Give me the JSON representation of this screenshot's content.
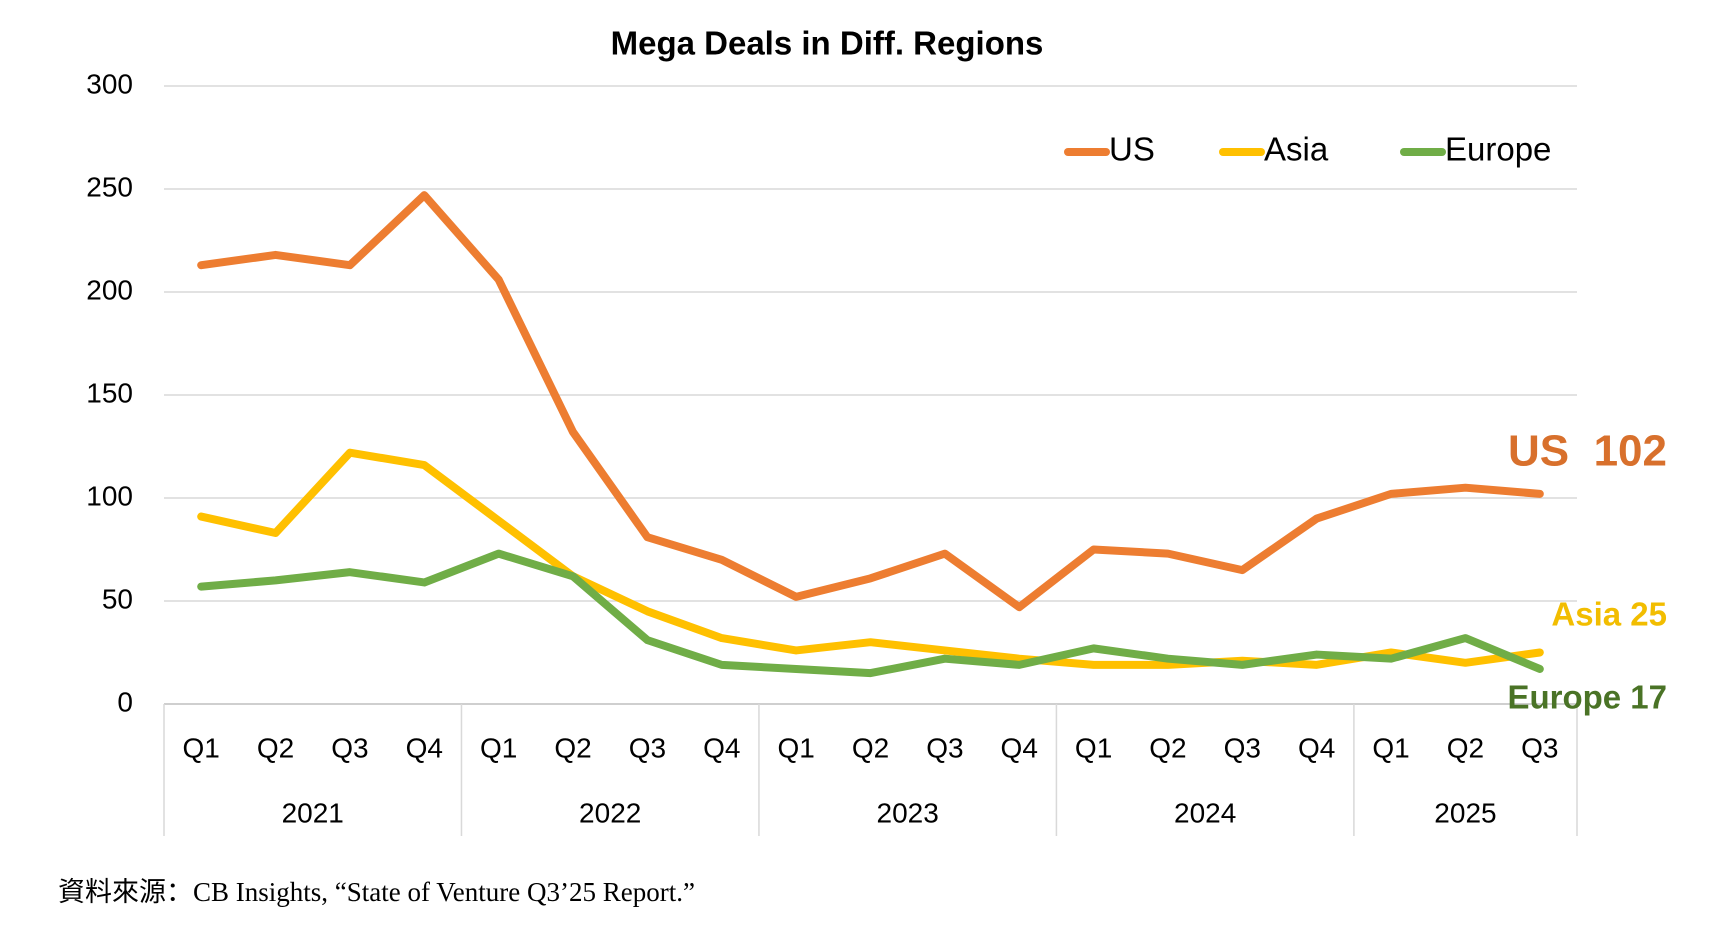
{
  "chart_data": {
    "type": "line",
    "title": "Mega Deals in Diff. Regions",
    "year_groups": [
      {
        "label": "2021",
        "quarters": [
          "Q1",
          "Q2",
          "Q3",
          "Q4"
        ]
      },
      {
        "label": "2022",
        "quarters": [
          "Q1",
          "Q2",
          "Q3",
          "Q4"
        ]
      },
      {
        "label": "2023",
        "quarters": [
          "Q1",
          "Q2",
          "Q3",
          "Q4"
        ]
      },
      {
        "label": "2024",
        "quarters": [
          "Q1",
          "Q2",
          "Q3",
          "Q4"
        ]
      },
      {
        "label": "2025",
        "quarters": [
          "Q1",
          "Q2",
          "Q3"
        ]
      }
    ],
    "series": [
      {
        "name": "US",
        "color": "#ed7d31",
        "values": [
          213,
          218,
          213,
          247,
          206,
          132,
          81,
          70,
          52,
          61,
          73,
          47,
          75,
          73,
          65,
          90,
          102,
          105,
          102
        ]
      },
      {
        "name": "Asia",
        "color": "#ffc000",
        "values": [
          91,
          83,
          122,
          116,
          89,
          62,
          45,
          32,
          26,
          30,
          26,
          22,
          19,
          19,
          21,
          19,
          25,
          20,
          25
        ]
      },
      {
        "name": "Europe",
        "color": "#70ad47",
        "values": [
          57,
          60,
          64,
          59,
          73,
          62,
          31,
          19,
          17,
          15,
          22,
          19,
          27,
          22,
          19,
          24,
          22,
          32,
          17
        ]
      }
    ],
    "annotations": [
      {
        "text": "US  102",
        "color": "#d8702c"
      },
      {
        "text": "Asia 25",
        "color": "#f2bd00"
      },
      {
        "text": "Europe 17",
        "color": "#4a7326"
      }
    ],
    "ylim": [
      0,
      300
    ],
    "yticks": [
      0,
      50,
      100,
      150,
      200,
      250,
      300
    ],
    "grid": true,
    "legend": "top-right",
    "source": "資料來源：CB Insights, “State of Venture Q3’25 Report.”"
  }
}
